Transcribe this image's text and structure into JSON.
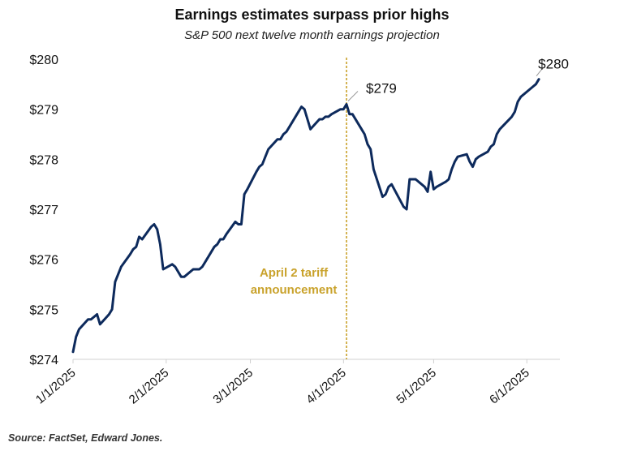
{
  "chart_data": {
    "type": "line",
    "title": "Earnings estimates surpass prior highs",
    "subtitle": "S&P 500 next twelve month earnings projection",
    "source": "Source: FactSet, Edward Jones.",
    "ylim": [
      274,
      280
    ],
    "yticks": [
      274,
      275,
      276,
      277,
      278,
      279,
      280
    ],
    "ytick_labels": [
      "$274",
      "$275",
      "$276",
      "$277",
      "$278",
      "$279",
      "$280"
    ],
    "xticks": [
      "2025-01-01",
      "2025-02-01",
      "2025-03-01",
      "2025-04-01",
      "2025-05-01",
      "2025-06-01"
    ],
    "xtick_labels": [
      "1/1/2025",
      "2/1/2025",
      "3/1/2025",
      "4/1/2025",
      "5/1/2025",
      "6/1/2025"
    ],
    "line_color": "#0d2a5c",
    "event": {
      "date": "2025-04-02",
      "label_lines": [
        "April 2 tariff",
        "announcement"
      ],
      "color": "#c9a22b"
    },
    "annotations": [
      {
        "date": "2025-04-02",
        "value": 279.1,
        "label": "$279"
      },
      {
        "date": "2025-06-05",
        "value": 279.6,
        "label": "$280"
      }
    ],
    "series": [
      {
        "x": [
          "2025-01-01",
          "2025-01-02",
          "2025-01-03",
          "2025-01-06",
          "2025-01-07",
          "2025-01-08",
          "2025-01-09",
          "2025-01-10",
          "2025-01-13",
          "2025-01-14",
          "2025-01-15",
          "2025-01-16",
          "2025-01-17",
          "2025-01-20",
          "2025-01-21",
          "2025-01-22",
          "2025-01-23",
          "2025-01-24",
          "2025-01-27",
          "2025-01-28",
          "2025-01-29",
          "2025-01-30",
          "2025-01-31",
          "2025-02-03",
          "2025-02-04",
          "2025-02-05",
          "2025-02-06",
          "2025-02-07",
          "2025-02-10",
          "2025-02-11",
          "2025-02-12",
          "2025-02-13",
          "2025-02-14",
          "2025-02-17",
          "2025-02-18",
          "2025-02-19",
          "2025-02-20",
          "2025-02-21",
          "2025-02-24",
          "2025-02-25",
          "2025-02-26",
          "2025-02-27",
          "2025-02-28",
          "2025-03-03",
          "2025-03-04",
          "2025-03-05",
          "2025-03-06",
          "2025-03-07",
          "2025-03-10",
          "2025-03-11",
          "2025-03-12",
          "2025-03-13",
          "2025-03-14",
          "2025-03-17",
          "2025-03-18",
          "2025-03-19",
          "2025-03-20",
          "2025-03-21",
          "2025-03-24",
          "2025-03-25",
          "2025-03-26",
          "2025-03-27",
          "2025-03-28",
          "2025-03-31",
          "2025-04-01",
          "2025-04-02",
          "2025-04-03",
          "2025-04-04",
          "2025-04-07",
          "2025-04-08",
          "2025-04-09",
          "2025-04-10",
          "2025-04-11",
          "2025-04-14",
          "2025-04-15",
          "2025-04-16",
          "2025-04-17",
          "2025-04-21",
          "2025-04-22",
          "2025-04-23",
          "2025-04-24",
          "2025-04-25",
          "2025-04-28",
          "2025-04-29",
          "2025-04-30",
          "2025-05-01",
          "2025-05-02",
          "2025-05-05",
          "2025-05-06",
          "2025-05-07",
          "2025-05-08",
          "2025-05-09",
          "2025-05-12",
          "2025-05-13",
          "2025-05-14",
          "2025-05-15",
          "2025-05-16",
          "2025-05-19",
          "2025-05-20",
          "2025-05-21",
          "2025-05-22",
          "2025-05-23",
          "2025-05-27",
          "2025-05-28",
          "2025-05-29",
          "2025-05-30",
          "2025-06-02",
          "2025-06-03",
          "2025-06-04",
          "2025-06-05"
        ],
        "y": [
          274.15,
          274.45,
          274.6,
          274.8,
          274.8,
          274.85,
          274.9,
          274.7,
          274.9,
          275.0,
          275.55,
          275.7,
          275.85,
          276.1,
          276.2,
          276.25,
          276.45,
          276.4,
          276.65,
          276.7,
          276.6,
          276.3,
          275.8,
          275.9,
          275.85,
          275.75,
          275.65,
          275.65,
          275.8,
          275.8,
          275.8,
          275.85,
          275.95,
          276.25,
          276.3,
          276.4,
          276.4,
          276.5,
          276.75,
          276.7,
          276.7,
          277.3,
          277.4,
          277.75,
          277.85,
          277.9,
          278.05,
          278.2,
          278.4,
          278.4,
          278.5,
          278.55,
          278.65,
          278.95,
          279.05,
          279.0,
          278.8,
          278.6,
          278.8,
          278.8,
          278.85,
          278.85,
          278.9,
          279.0,
          279.0,
          279.1,
          278.9,
          278.9,
          278.6,
          278.5,
          278.3,
          278.2,
          277.8,
          277.25,
          277.3,
          277.45,
          277.5,
          277.05,
          277.0,
          277.6,
          277.6,
          277.6,
          277.45,
          277.35,
          277.75,
          277.4,
          277.45,
          277.55,
          277.6,
          277.8,
          277.95,
          278.05,
          278.1,
          277.95,
          277.85,
          278.0,
          278.05,
          278.15,
          278.25,
          278.3,
          278.5,
          278.6,
          278.85,
          278.95,
          279.15,
          279.25,
          279.4,
          279.45,
          279.5,
          279.6
        ]
      }
    ]
  }
}
